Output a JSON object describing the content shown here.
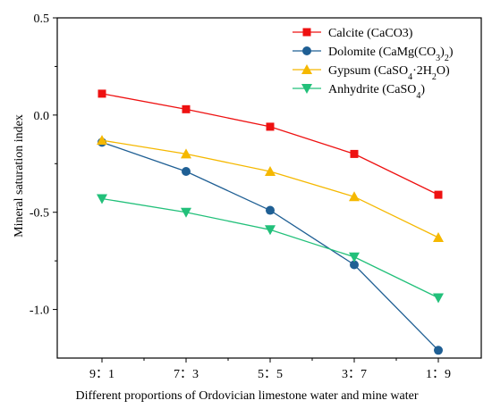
{
  "chart_data": {
    "type": "line",
    "title": "",
    "xlabel": "Different proportions of Ordovician limestone water and mine water",
    "ylabel": "Mineral saturation index",
    "categories": [
      "9：1",
      "7：3",
      "5：5",
      "3：7",
      "1：9"
    ],
    "ylim": [
      -1.25,
      0.5
    ],
    "yticks": [
      0.5,
      0.0,
      -0.5,
      -1.0
    ],
    "ytick_labels": [
      "0.5",
      "0.0",
      "-0.5",
      "-1.0"
    ],
    "grid": false,
    "legend_position": "top-right",
    "series": [
      {
        "name": "Calcite (CaCO3)",
        "name_parts": [
          {
            "t": "Calcite (CaCO3)",
            "s": ""
          }
        ],
        "color": "#ee1111",
        "marker": "square",
        "values": [
          0.11,
          0.03,
          -0.06,
          -0.2,
          -0.41
        ]
      },
      {
        "name": "Dolomite (CaMg(CO3)2)",
        "name_parts": [
          {
            "t": "Dolomite (CaMg(CO",
            "s": ""
          },
          {
            "t": "3",
            "s": "sub"
          },
          {
            "t": ")",
            "s": ""
          },
          {
            "t": "2",
            "s": "sub"
          },
          {
            "t": ")",
            "s": ""
          }
        ],
        "color": "#1f5f94",
        "marker": "circle",
        "values": [
          -0.14,
          -0.29,
          -0.49,
          -0.77,
          -1.21
        ]
      },
      {
        "name": "Gypsum (CaSO4·2H2O)",
        "name_parts": [
          {
            "t": "Gypsum (CaSO",
            "s": ""
          },
          {
            "t": "4",
            "s": "sub"
          },
          {
            "t": "·2H",
            "s": ""
          },
          {
            "t": "2",
            "s": "sub"
          },
          {
            "t": "O)",
            "s": ""
          }
        ],
        "color": "#f5b800",
        "marker": "triangle-up",
        "values": [
          -0.13,
          -0.2,
          -0.29,
          -0.42,
          -0.63
        ]
      },
      {
        "name": "Anhydrite (CaSO4)",
        "name_parts": [
          {
            "t": "Anhydrite (CaSO",
            "s": ""
          },
          {
            "t": "4",
            "s": "sub"
          },
          {
            "t": ")",
            "s": ""
          }
        ],
        "color": "#22c07a",
        "marker": "triangle-down",
        "values": [
          -0.43,
          -0.5,
          -0.59,
          -0.73,
          -0.94
        ]
      }
    ]
  }
}
